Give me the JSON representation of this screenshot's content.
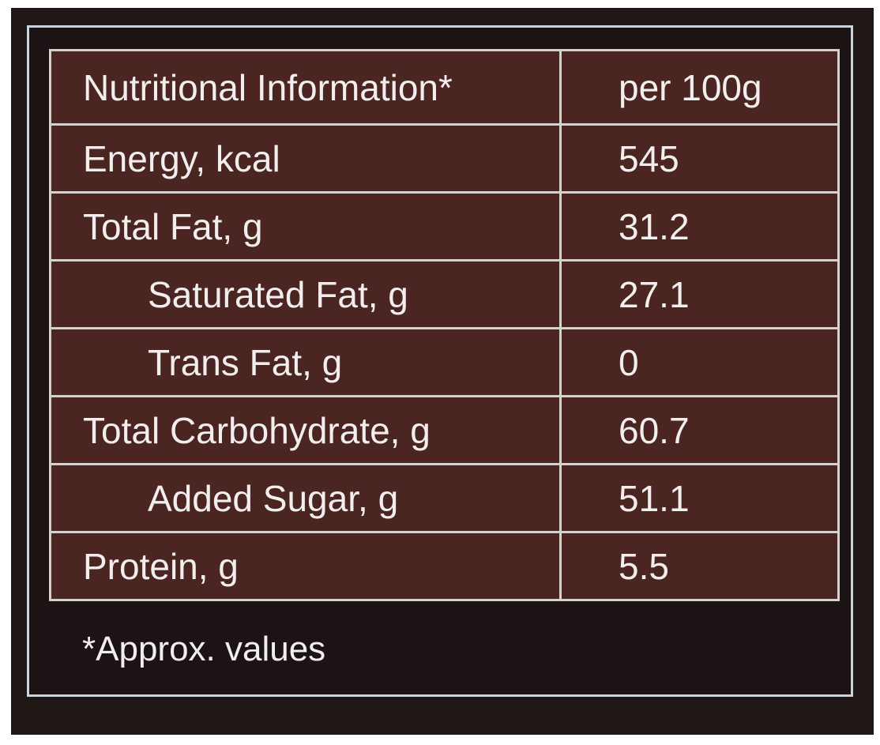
{
  "table": {
    "header": {
      "label": "Nutritional Information*",
      "value": "per 100g"
    },
    "rows": [
      {
        "label": "Energy, kcal",
        "value": "545"
      },
      {
        "label": "Total Fat, g",
        "value": "31.2"
      },
      {
        "label": "Saturated Fat, g",
        "value": "27.1"
      },
      {
        "label": "Trans Fat, g",
        "value": "0"
      },
      {
        "label": "Total Carbohydrate, g",
        "value": "60.7"
      },
      {
        "label": "Added Sugar, g",
        "value": "51.1"
      },
      {
        "label": "Protein, g",
        "value": "5.5"
      }
    ]
  },
  "footnote": "*Approx. values",
  "colors": {
    "panel_background": "#1f1616",
    "table_background": "#4a2522",
    "grid_lines": "#d8d0cc",
    "frame_border": "#c9d4dc",
    "text": "#f3eeee"
  }
}
